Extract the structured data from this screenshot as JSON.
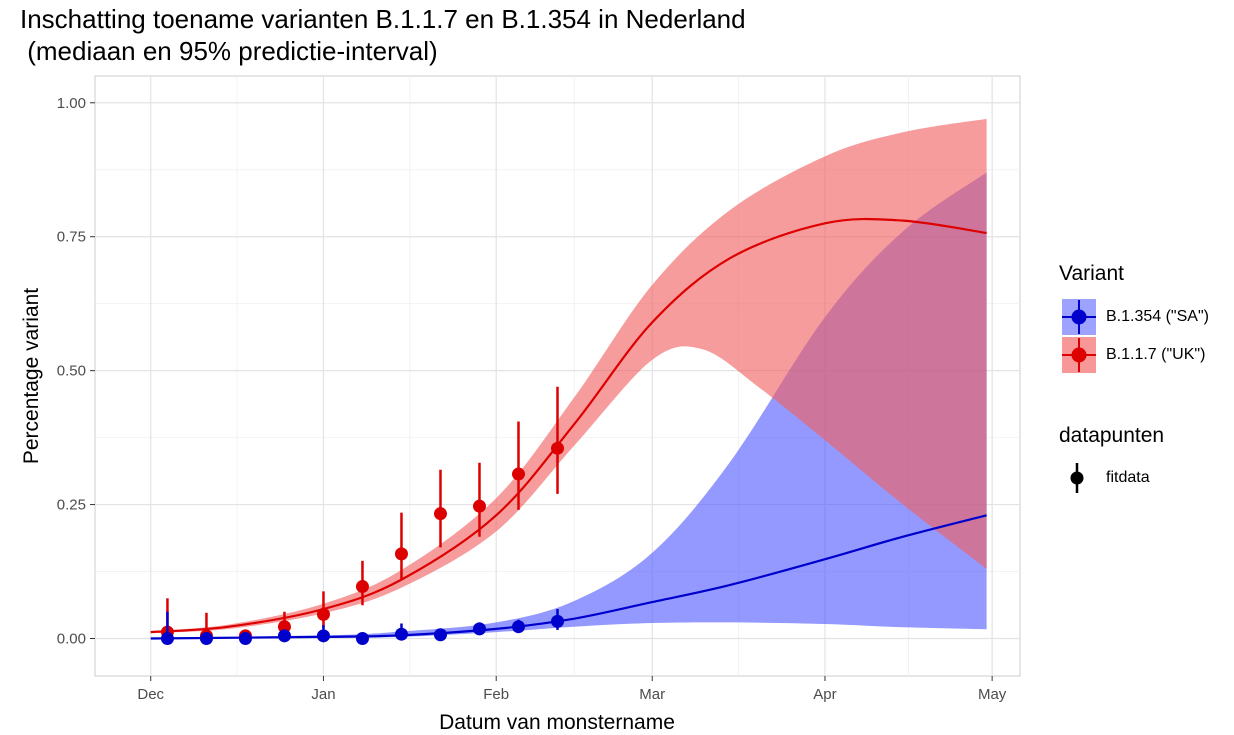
{
  "chart_data": {
    "type": "line",
    "title": "Inschatting toename varianten B.1.1.7 en B.1.354 in Nederland",
    "subtitle": " (mediaan en 95% predictie-interval)",
    "xlabel": "Datum van monstername",
    "ylabel": "Percentage variant",
    "x_ticks": [
      "Dec",
      "Jan",
      "Feb",
      "Mar",
      "Apr",
      "May"
    ],
    "x_tick_dates": [
      "2020-12-01",
      "2021-01-01",
      "2021-02-01",
      "2021-03-01",
      "2021-04-01",
      "2021-05-01"
    ],
    "y_ticks": [
      "0.00",
      "0.25",
      "0.50",
      "0.75",
      "1.00"
    ],
    "ylim": [
      -0.07,
      1.05
    ],
    "xlim": [
      "2020-11-21",
      "2021-05-06"
    ],
    "grid": true,
    "legend_position": "right",
    "legend": {
      "variant_title": "Variant",
      "datapoints_title": "datapunten",
      "datapoints_label": "fitdata"
    },
    "series": [
      {
        "name": "B.1.354 (\"SA\")",
        "color": "#0000cc",
        "band_color": "#4d55ff",
        "curve": [
          {
            "x": "2020-12-01",
            "y": 0.0
          },
          {
            "x": "2021-01-01",
            "y": 0.003
          },
          {
            "x": "2021-01-15",
            "y": 0.006
          },
          {
            "x": "2021-02-01",
            "y": 0.018
          },
          {
            "x": "2021-02-15",
            "y": 0.037
          },
          {
            "x": "2021-03-01",
            "y": 0.068
          },
          {
            "x": "2021-03-15",
            "y": 0.1
          },
          {
            "x": "2021-04-01",
            "y": 0.148
          },
          {
            "x": "2021-04-15",
            "y": 0.19
          },
          {
            "x": "2021-04-30",
            "y": 0.23
          }
        ],
        "band_upper": [
          {
            "x": "2020-12-01",
            "y": 0.002
          },
          {
            "x": "2021-01-01",
            "y": 0.006
          },
          {
            "x": "2021-01-15",
            "y": 0.013
          },
          {
            "x": "2021-02-01",
            "y": 0.03
          },
          {
            "x": "2021-02-15",
            "y": 0.07
          },
          {
            "x": "2021-03-01",
            "y": 0.16
          },
          {
            "x": "2021-03-15",
            "y": 0.33
          },
          {
            "x": "2021-04-01",
            "y": 0.6
          },
          {
            "x": "2021-04-15",
            "y": 0.76
          },
          {
            "x": "2021-04-30",
            "y": 0.87
          }
        ],
        "band_lower": [
          {
            "x": "2020-12-01",
            "y": 0.0
          },
          {
            "x": "2021-01-01",
            "y": 0.001
          },
          {
            "x": "2021-01-15",
            "y": 0.003
          },
          {
            "x": "2021-02-01",
            "y": 0.012
          },
          {
            "x": "2021-02-15",
            "y": 0.022
          },
          {
            "x": "2021-03-01",
            "y": 0.029
          },
          {
            "x": "2021-03-15",
            "y": 0.03
          },
          {
            "x": "2021-04-01",
            "y": 0.027
          },
          {
            "x": "2021-04-15",
            "y": 0.021
          },
          {
            "x": "2021-04-30",
            "y": 0.017
          }
        ],
        "points": [
          {
            "x": "2020-12-04",
            "y": 0.0,
            "lo": 0.0,
            "hi": 0.05
          },
          {
            "x": "2020-12-11",
            "y": 0.0,
            "lo": 0.0,
            "hi": 0.01
          },
          {
            "x": "2020-12-18",
            "y": 0.0,
            "lo": 0.0,
            "hi": 0.01
          },
          {
            "x": "2020-12-25",
            "y": 0.005,
            "lo": 0.0,
            "hi": 0.012
          },
          {
            "x": "2021-01-01",
            "y": 0.005,
            "lo": 0.0,
            "hi": 0.025
          },
          {
            "x": "2021-01-08",
            "y": 0.0,
            "lo": 0.0,
            "hi": 0.005
          },
          {
            "x": "2021-01-15",
            "y": 0.008,
            "lo": 0.0,
            "hi": 0.028
          },
          {
            "x": "2021-01-22",
            "y": 0.007,
            "lo": 0.0,
            "hi": 0.015
          },
          {
            "x": "2021-01-29",
            "y": 0.018,
            "lo": 0.008,
            "hi": 0.03
          },
          {
            "x": "2021-02-05",
            "y": 0.022,
            "lo": 0.012,
            "hi": 0.035
          },
          {
            "x": "2021-02-12",
            "y": 0.032,
            "lo": 0.016,
            "hi": 0.055
          }
        ]
      },
      {
        "name": "B.1.1.7 (\"UK\")",
        "color": "#dd0000",
        "band_color": "#f26060",
        "curve": [
          {
            "x": "2020-12-01",
            "y": 0.012
          },
          {
            "x": "2020-12-15",
            "y": 0.022
          },
          {
            "x": "2021-01-01",
            "y": 0.055
          },
          {
            "x": "2021-01-15",
            "y": 0.11
          },
          {
            "x": "2021-02-01",
            "y": 0.23
          },
          {
            "x": "2021-02-15",
            "y": 0.4
          },
          {
            "x": "2021-03-01",
            "y": 0.59
          },
          {
            "x": "2021-03-15",
            "y": 0.71
          },
          {
            "x": "2021-04-01",
            "y": 0.775
          },
          {
            "x": "2021-04-15",
            "y": 0.78
          },
          {
            "x": "2021-04-30",
            "y": 0.757
          }
        ],
        "band_upper": [
          {
            "x": "2020-12-01",
            "y": 0.014
          },
          {
            "x": "2020-12-15",
            "y": 0.026
          },
          {
            "x": "2021-01-01",
            "y": 0.065
          },
          {
            "x": "2021-01-15",
            "y": 0.128
          },
          {
            "x": "2021-02-01",
            "y": 0.262
          },
          {
            "x": "2021-02-15",
            "y": 0.45
          },
          {
            "x": "2021-03-01",
            "y": 0.66
          },
          {
            "x": "2021-03-15",
            "y": 0.8
          },
          {
            "x": "2021-04-01",
            "y": 0.9
          },
          {
            "x": "2021-04-15",
            "y": 0.945
          },
          {
            "x": "2021-04-30",
            "y": 0.97
          }
        ],
        "band_lower": [
          {
            "x": "2020-12-01",
            "y": 0.01
          },
          {
            "x": "2020-12-15",
            "y": 0.018
          },
          {
            "x": "2021-01-01",
            "y": 0.047
          },
          {
            "x": "2021-01-15",
            "y": 0.095
          },
          {
            "x": "2021-02-01",
            "y": 0.2
          },
          {
            "x": "2021-02-15",
            "y": 0.36
          },
          {
            "x": "2021-03-01",
            "y": 0.52
          },
          {
            "x": "2021-03-10",
            "y": 0.54
          },
          {
            "x": "2021-03-20",
            "y": 0.47
          },
          {
            "x": "2021-04-01",
            "y": 0.37
          },
          {
            "x": "2021-04-15",
            "y": 0.25
          },
          {
            "x": "2021-04-30",
            "y": 0.13
          }
        ],
        "points": [
          {
            "x": "2020-12-04",
            "y": 0.012,
            "lo": 0.0,
            "hi": 0.075
          },
          {
            "x": "2020-12-11",
            "y": 0.005,
            "lo": 0.0,
            "hi": 0.048
          },
          {
            "x": "2020-12-18",
            "y": 0.005,
            "lo": 0.0,
            "hi": 0.015
          },
          {
            "x": "2020-12-25",
            "y": 0.022,
            "lo": 0.01,
            "hi": 0.05
          },
          {
            "x": "2021-01-01",
            "y": 0.045,
            "lo": 0.02,
            "hi": 0.088
          },
          {
            "x": "2021-01-08",
            "y": 0.097,
            "lo": 0.062,
            "hi": 0.145
          },
          {
            "x": "2021-01-15",
            "y": 0.158,
            "lo": 0.11,
            "hi": 0.235
          },
          {
            "x": "2021-01-22",
            "y": 0.233,
            "lo": 0.17,
            "hi": 0.315
          },
          {
            "x": "2021-01-29",
            "y": 0.247,
            "lo": 0.19,
            "hi": 0.328
          },
          {
            "x": "2021-02-05",
            "y": 0.307,
            "lo": 0.24,
            "hi": 0.405
          },
          {
            "x": "2021-02-12",
            "y": 0.355,
            "lo": 0.27,
            "hi": 0.47
          }
        ]
      }
    ]
  }
}
